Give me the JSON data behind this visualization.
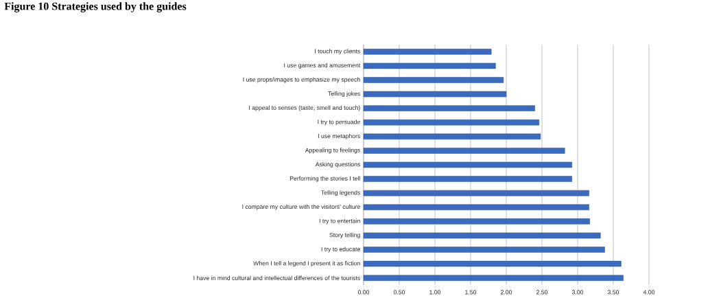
{
  "chart_data": {
    "type": "bar",
    "orientation": "horizontal",
    "title": "Figure 10 Strategies used by the guides",
    "categories": [
      "I touch my clients",
      "I use games and amusement",
      "I use props/images to emphasize my speech",
      "Telling jokes",
      "I appeal to senses (taste, smell and touch)",
      "I try to persuade",
      "I use metaphors",
      "Appealing to feelings",
      "Asking questions",
      "Performing the stories I tell",
      "Telling legends",
      "I compare my culture with the visitors' culture",
      "I try to entertain",
      "Story telling",
      "I try to educate",
      "When I tell a legend I present it as fiction",
      "I have in mind cultural and intellectual differences of the tourists"
    ],
    "values": [
      1.79,
      1.85,
      1.96,
      2.0,
      2.4,
      2.46,
      2.48,
      2.82,
      2.92,
      2.92,
      3.16,
      3.16,
      3.17,
      3.32,
      3.38,
      3.61,
      3.64
    ],
    "color": "#3a6bbf",
    "xlim": [
      0,
      4
    ],
    "xticks": [
      {
        "value": 0,
        "label": "0.00"
      },
      {
        "value": 0.5,
        "label": "0.50"
      },
      {
        "value": 1,
        "label": "1.00"
      },
      {
        "value": 1.5,
        "label": "1.50"
      },
      {
        "value": 2,
        "label": "2.00"
      },
      {
        "value": 2.5,
        "label": "2.50"
      },
      {
        "value": 3,
        "label": "3.00"
      },
      {
        "value": 3.5,
        "label": "3.50"
      },
      {
        "value": 4,
        "label": "4.00"
      }
    ],
    "grid": "x"
  }
}
